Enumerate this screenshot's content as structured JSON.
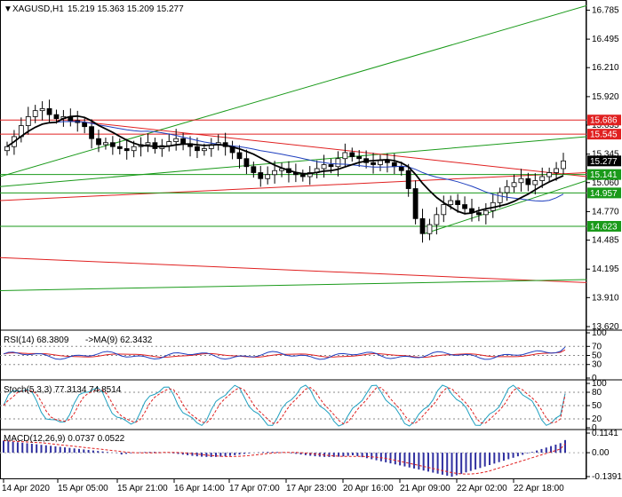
{
  "main": {
    "symbol_label": "XAGUSD,H1",
    "ohlc": "15.219 15.363 15.209 15.277",
    "y_ticks": [
      "16.785",
      "16.495",
      "16.210",
      "15.920",
      "15.635",
      "15.345",
      "15.060",
      "14.770",
      "14.485",
      "14.195",
      "13.910",
      "13.620"
    ],
    "level_labels": [
      {
        "text": "15.686",
        "color": "#e02020"
      },
      {
        "text": "15.545",
        "color": "#e02020"
      },
      {
        "text": "15.277",
        "color": "#000000"
      },
      {
        "text": "15.141",
        "color": "#1a9a1a"
      },
      {
        "text": "14.957",
        "color": "#1a9a1a"
      },
      {
        "text": "14.623",
        "color": "#1a9a1a"
      }
    ]
  },
  "rsi": {
    "title": "RSI(14) 68.3809",
    "ma_title": "->MA(9) 62.3432",
    "ticks": [
      "100",
      "70",
      "50",
      "30",
      "0"
    ]
  },
  "stoch": {
    "title": "Stoch(5,3,3) 77.3134 74.8514",
    "ticks": [
      "100",
      "80",
      "50",
      "20",
      "0"
    ]
  },
  "macd": {
    "title": "MACD(12,26,9) 0.0737 0.0522",
    "ticks": [
      "0.1141",
      "0.00",
      "-0.1391"
    ]
  },
  "x_labels": [
    "14 Apr 2020",
    "15 Apr 05:00",
    "15 Apr 21:00",
    "16 Apr 14:00",
    "17 Apr 07:00",
    "17 Apr 23:00",
    "20 Apr 16:00",
    "21 Apr 09:00",
    "22 Apr 02:00",
    "22 Apr 18:00"
  ],
  "colors": {
    "up_candle": "#1a9a1a",
    "down_candle": "#b00000",
    "resistance": "#e02020",
    "support": "#1a9a1a",
    "ma_fast": "#000000",
    "ma_slow": "#1f3fbf",
    "rsi_line": "#1f3fbf",
    "rsi_ma": "#e02020",
    "stoch_main": "#20a0c0",
    "stoch_signal": "#e02020",
    "macd_hist": "#3030a0",
    "macd_signal": "#e02020"
  },
  "chart_data": {
    "type": "line",
    "title": "XAGUSD,H1",
    "x_labels": [
      "14 Apr 2020",
      "15 Apr 05:00",
      "15 Apr 21:00",
      "16 Apr 14:00",
      "17 Apr 07:00",
      "17 Apr 23:00",
      "20 Apr 16:00",
      "21 Apr 09:00",
      "22 Apr 02:00",
      "22 Apr 18:00"
    ],
    "ylim": [
      13.62,
      16.785
    ],
    "last_close": 15.277,
    "close": [
      15.42,
      15.52,
      15.63,
      15.72,
      15.78,
      15.8,
      15.74,
      15.7,
      15.72,
      15.68,
      15.66,
      15.62,
      15.5,
      15.44,
      15.46,
      15.42,
      15.4,
      15.38,
      15.42,
      15.44,
      15.46,
      15.4,
      15.43,
      15.47,
      15.5,
      15.45,
      15.42,
      15.38,
      15.4,
      15.44,
      15.46,
      15.42,
      15.36,
      15.3,
      15.22,
      15.16,
      15.1,
      15.14,
      15.18,
      15.2,
      15.16,
      15.14,
      15.12,
      15.16,
      15.2,
      15.24,
      15.22,
      15.3,
      15.36,
      15.32,
      15.3,
      15.26,
      15.24,
      15.28,
      15.26,
      15.22,
      15.18,
      15.0,
      14.7,
      14.55,
      14.64,
      14.74,
      14.84,
      14.88,
      14.84,
      14.8,
      14.76,
      14.74,
      14.78,
      14.86,
      14.96,
      15.02,
      15.06,
      15.1,
      15.04,
      15.08,
      15.12,
      15.16,
      15.2,
      15.277
    ],
    "horizontal_levels": [
      15.686,
      15.545,
      15.141,
      14.957,
      14.623
    ],
    "rsi": {
      "value": 68.3809,
      "ma": 62.3432,
      "levels": [
        70,
        50,
        30
      ]
    },
    "stoch": {
      "k": 77.3134,
      "d": 74.8514,
      "levels": [
        80,
        50,
        20
      ]
    },
    "macd": {
      "main": 0.0737,
      "signal": 0.0522,
      "ylim": [
        -0.1391,
        0.1141
      ]
    }
  }
}
